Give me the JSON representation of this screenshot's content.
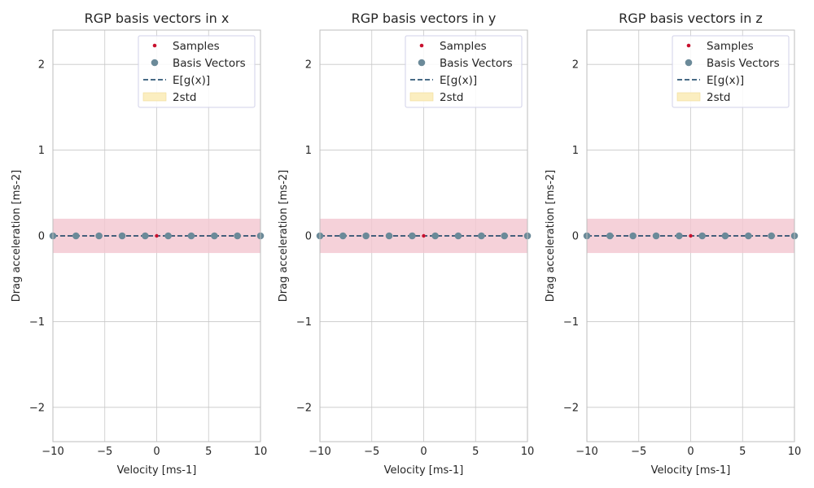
{
  "chart_data": [
    {
      "type": "scatter",
      "title": "RGP basis vectors in x",
      "xlabel": "Velocity [ms-1]",
      "ylabel": "Drag acceleration [ms-2]",
      "xlim": [
        -10,
        10
      ],
      "ylim": [
        -2.4,
        2.4
      ],
      "xticks": [
        -10,
        -5,
        0,
        5,
        10
      ],
      "xtick_labels": [
        "−10",
        "−5",
        "0",
        "5",
        "10"
      ],
      "yticks": [
        -2,
        -1,
        0,
        1,
        2
      ],
      "ytick_labels": [
        "−2",
        "−1",
        "0",
        "1",
        "2"
      ],
      "grid": true,
      "legend_position": "top-right",
      "legend": [
        "Samples",
        "Basis Vectors",
        "E[g(x)]",
        "2std"
      ],
      "samples": {
        "x": [
          0
        ],
        "y": [
          0
        ]
      },
      "basis_vectors": {
        "x": [
          -10,
          -7.78,
          -5.56,
          -3.33,
          -1.11,
          1.11,
          3.33,
          5.56,
          7.78,
          10
        ],
        "y": [
          0,
          0,
          0,
          0,
          0,
          0,
          0,
          0,
          0,
          0
        ]
      },
      "mean": {
        "x": [
          -10,
          10
        ],
        "y": [
          0,
          0
        ]
      },
      "std2_band": {
        "x": [
          -10,
          10
        ],
        "lower": [
          -0.2,
          -0.2
        ],
        "upper": [
          0.2,
          0.2
        ]
      }
    },
    {
      "type": "scatter",
      "title": "RGP basis vectors in y",
      "xlabel": "Velocity [ms-1]",
      "ylabel": "Drag acceleration [ms-2]",
      "xlim": [
        -10,
        10
      ],
      "ylim": [
        -2.4,
        2.4
      ],
      "xticks": [
        -10,
        -5,
        0,
        5,
        10
      ],
      "xtick_labels": [
        "−10",
        "−5",
        "0",
        "5",
        "10"
      ],
      "yticks": [
        -2,
        -1,
        0,
        1,
        2
      ],
      "ytick_labels": [
        "−2",
        "−1",
        "0",
        "1",
        "2"
      ],
      "grid": true,
      "legend_position": "top-right",
      "legend": [
        "Samples",
        "Basis Vectors",
        "E[g(x)]",
        "2std"
      ],
      "samples": {
        "x": [
          0
        ],
        "y": [
          0
        ]
      },
      "basis_vectors": {
        "x": [
          -10,
          -7.78,
          -5.56,
          -3.33,
          -1.11,
          1.11,
          3.33,
          5.56,
          7.78,
          10
        ],
        "y": [
          0,
          0,
          0,
          0,
          0,
          0,
          0,
          0,
          0,
          0
        ]
      },
      "mean": {
        "x": [
          -10,
          10
        ],
        "y": [
          0,
          0
        ]
      },
      "std2_band": {
        "x": [
          -10,
          10
        ],
        "lower": [
          -0.2,
          -0.2
        ],
        "upper": [
          0.2,
          0.2
        ]
      }
    },
    {
      "type": "scatter",
      "title": "RGP basis vectors in z",
      "xlabel": "Velocity [ms-1]",
      "ylabel": "Drag acceleration [ms-2]",
      "xlim": [
        -10,
        10
      ],
      "ylim": [
        -2.4,
        2.4
      ],
      "xticks": [
        -10,
        -5,
        0,
        5,
        10
      ],
      "xtick_labels": [
        "−10",
        "−5",
        "0",
        "5",
        "10"
      ],
      "yticks": [
        -2,
        -1,
        0,
        1,
        2
      ],
      "ytick_labels": [
        "−2",
        "−1",
        "0",
        "1",
        "2"
      ],
      "grid": true,
      "legend_position": "top-right",
      "legend": [
        "Samples",
        "Basis Vectors",
        "E[g(x)]",
        "2std"
      ],
      "samples": {
        "x": [
          0
        ],
        "y": [
          0
        ]
      },
      "basis_vectors": {
        "x": [
          -10,
          -7.78,
          -5.56,
          -3.33,
          -1.11,
          1.11,
          3.33,
          5.56,
          7.78,
          10
        ],
        "y": [
          0,
          0,
          0,
          0,
          0,
          0,
          0,
          0,
          0,
          0
        ]
      },
      "mean": {
        "x": [
          -10,
          10
        ],
        "y": [
          0,
          0
        ]
      },
      "std2_band": {
        "x": [
          -10,
          10
        ],
        "lower": [
          -0.2,
          -0.2
        ],
        "upper": [
          0.2,
          0.2
        ]
      }
    }
  ],
  "colors": {
    "samples": "#c8102e",
    "basis_vectors": "#6b8a99",
    "mean_line": "#0b3a5e",
    "band_fill": "#f2c6cf",
    "band_legend": "#fbeec0",
    "grid": "#c8c8c8",
    "frame": "#bdbdbd",
    "text": "#262626"
  }
}
